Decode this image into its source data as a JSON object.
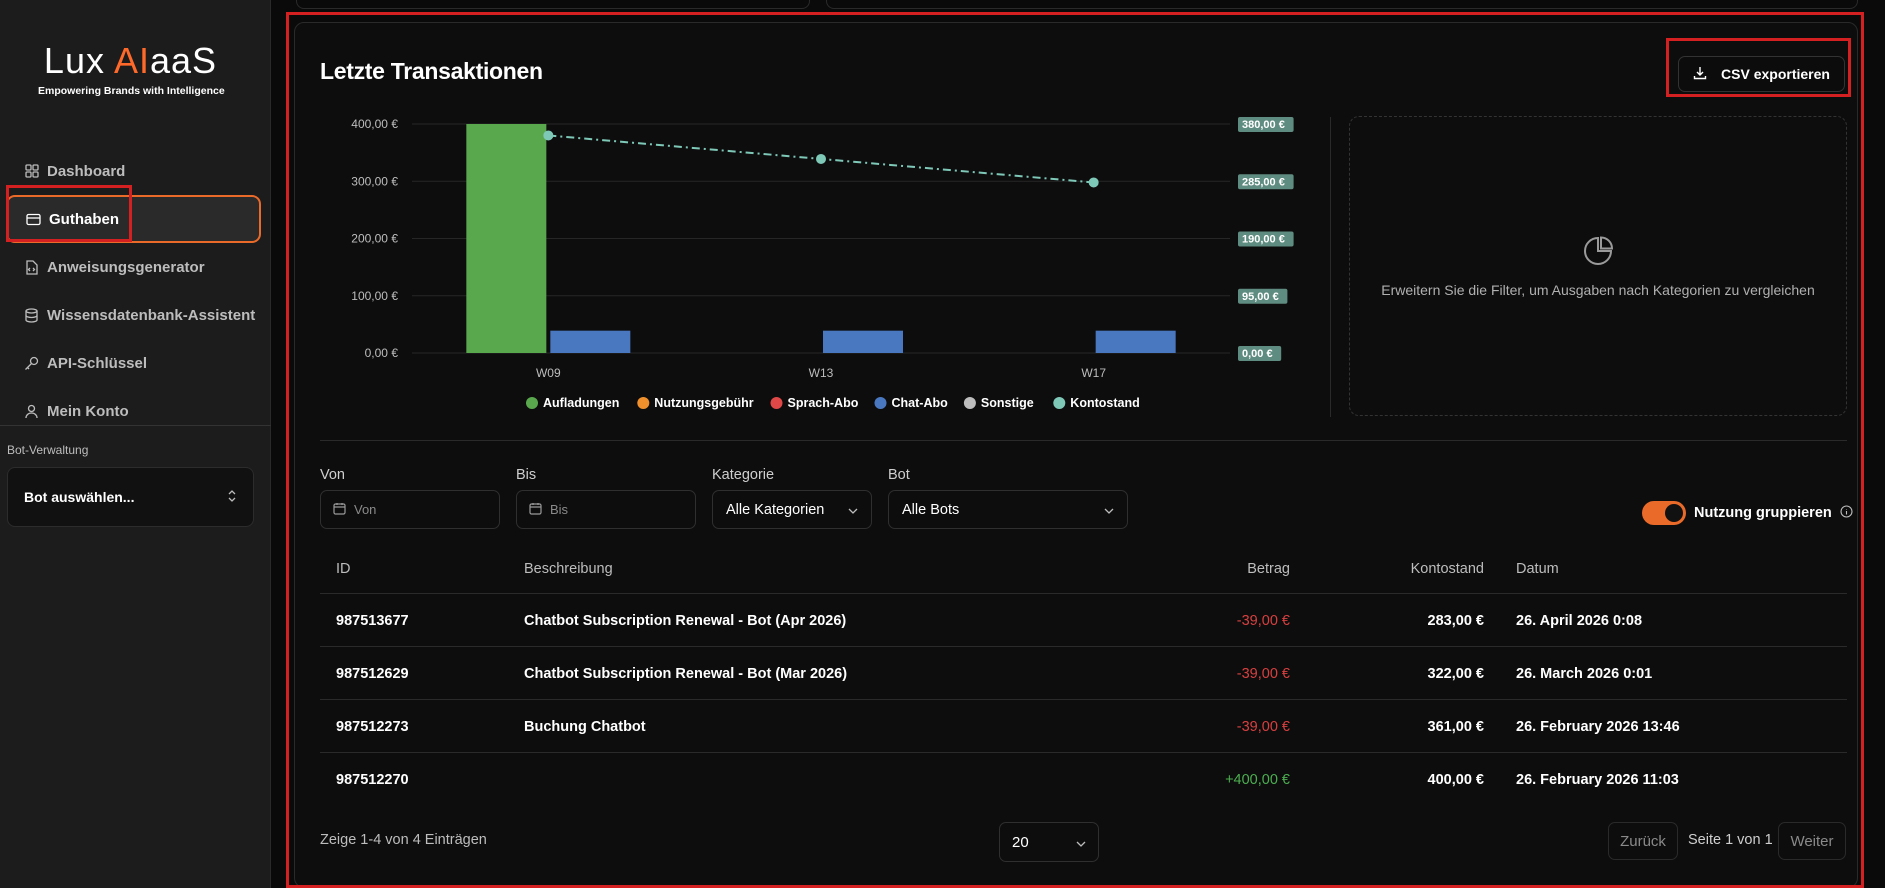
{
  "logo": {
    "text_main": "Lux ",
    "text_accent": "AI",
    "text_tail": "aaS",
    "tagline": "Empowering Brands with Intelligence"
  },
  "sidebar": {
    "items": [
      {
        "label": "Dashboard",
        "icon": "grid-icon"
      },
      {
        "label": "Guthaben",
        "icon": "credit-card-icon",
        "active": true
      },
      {
        "label": "Anweisungsgenerator",
        "icon": "file-code-icon"
      },
      {
        "label": "Wissensdatenbank-Assistent",
        "icon": "database-icon"
      },
      {
        "label": "API-Schlüssel",
        "icon": "key-icon"
      },
      {
        "label": "Mein Konto",
        "icon": "user-icon"
      }
    ],
    "section_label": "Bot-Verwaltung",
    "bot_select": "Bot auswählen..."
  },
  "main": {
    "title": "Letzte Transaktionen",
    "csv_button": "CSV exportieren",
    "empty_hint": "Erweitern Sie die Filter, um Ausgaben nach Kategorien zu vergleichen"
  },
  "chart_data": {
    "type": "bar",
    "categories": [
      "W09",
      "W13",
      "W17"
    ],
    "series": [
      {
        "name": "Aufladungen",
        "kind": "bar",
        "color": "#5aa84e",
        "values": [
          400,
          0,
          0
        ]
      },
      {
        "name": "Nutzungsgebühr",
        "kind": "bar",
        "color": "#f0902c",
        "values": [
          0,
          0,
          0
        ]
      },
      {
        "name": "Sprach-Abo",
        "kind": "bar",
        "color": "#e04848",
        "values": [
          0,
          0,
          0
        ]
      },
      {
        "name": "Chat-Abo",
        "kind": "bar",
        "color": "#4a78c0",
        "values": [
          39,
          39,
          39
        ]
      },
      {
        "name": "Sonstige",
        "kind": "bar",
        "color": "#bdbdbd",
        "values": [
          0,
          0,
          0
        ]
      },
      {
        "name": "Kontostand",
        "kind": "line",
        "color": "#7ec8b8",
        "values": [
          361,
          322,
          283
        ]
      }
    ],
    "y_left_ticks": [
      "0,00 €",
      "100,00 €",
      "200,00 €",
      "300,00 €",
      "400,00 €"
    ],
    "y_left_lim": [
      0,
      400
    ],
    "y_right_ticks": [
      "0,00 €",
      "95,00 €",
      "190,00 €",
      "285,00 €",
      "380,00 €"
    ],
    "y_right_lim": [
      0,
      380
    ],
    "grid": true,
    "legend": "bottom"
  },
  "filters": {
    "von_label": "Von",
    "von_placeholder": "Von",
    "bis_label": "Bis",
    "bis_placeholder": "Bis",
    "kategorie_label": "Kategorie",
    "kategorie_value": "Alle Kategorien",
    "bot_label": "Bot",
    "bot_value": "Alle Bots",
    "toggle_label": "Nutzung gruppieren",
    "toggle_on": true
  },
  "table": {
    "headers": {
      "id": "ID",
      "desc": "Beschreibung",
      "amount": "Betrag",
      "balance": "Kontostand",
      "date": "Datum"
    },
    "rows": [
      {
        "id": "987513677",
        "desc": "Chatbot Subscription Renewal - Bot (Apr 2026)",
        "amount": "-39,00 €",
        "balance": "283,00 €",
        "date": "26. April 2026 0:08"
      },
      {
        "id": "987512629",
        "desc": "Chatbot Subscription Renewal - Bot (Mar 2026)",
        "amount": "-39,00 €",
        "balance": "322,00 €",
        "date": "26. March 2026 0:01"
      },
      {
        "id": "987512273",
        "desc": "Buchung Chatbot",
        "amount": "-39,00 €",
        "balance": "361,00 €",
        "date": "26. February 2026 13:46"
      },
      {
        "id": "987512270",
        "desc": "",
        "amount": "+400,00 €",
        "balance": "400,00 €",
        "date": "26. February 2026 11:03"
      }
    ]
  },
  "footer": {
    "entries_text": "Zeige 1-4 von 4 Einträgen",
    "page_size": "20",
    "back": "Zurück",
    "page_info": "Seite 1 von 1",
    "next": "Weiter"
  }
}
